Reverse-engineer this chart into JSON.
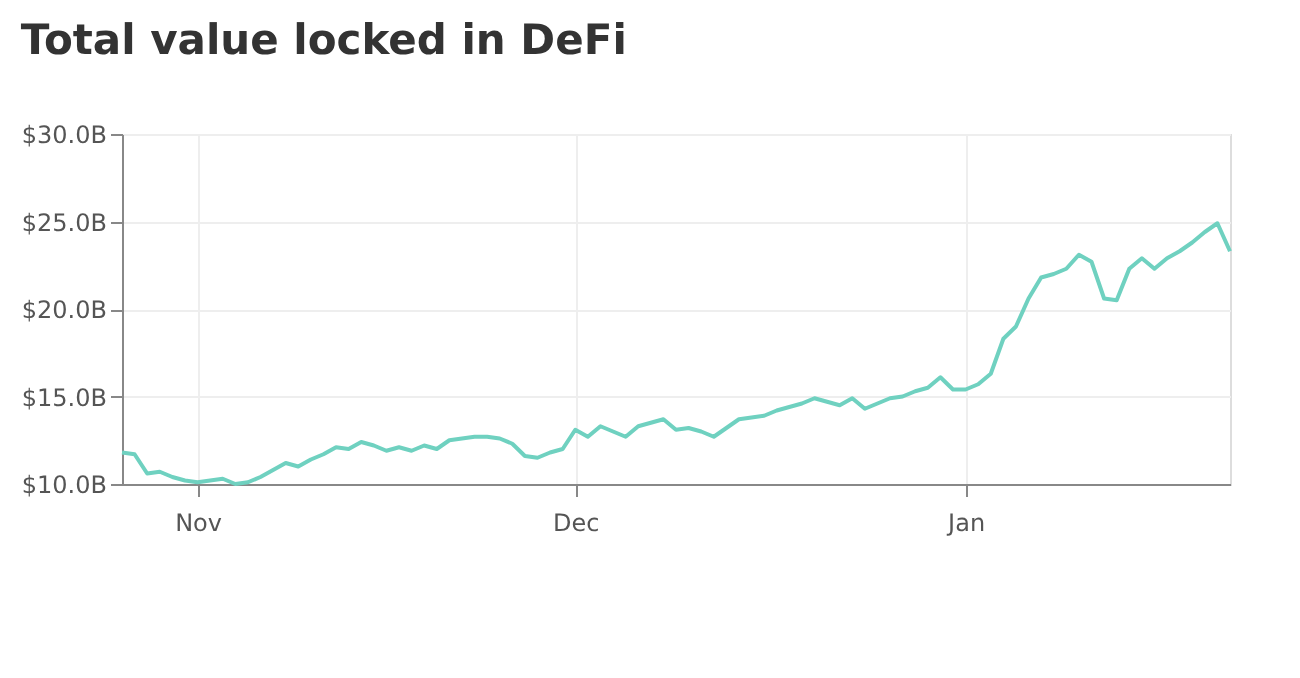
{
  "chart_data": {
    "type": "line",
    "title": "Total value locked in DeFi",
    "categories": [
      null,
      null,
      null,
      null,
      null,
      null,
      "Nov",
      null,
      null,
      null,
      null,
      null,
      null,
      null,
      null,
      null,
      null,
      null,
      null,
      null,
      null,
      null,
      null,
      null,
      null,
      null,
      null,
      null,
      null,
      null,
      null,
      null,
      null,
      null,
      null,
      null,
      "Dec",
      null,
      null,
      null,
      null,
      null,
      null,
      null,
      null,
      null,
      null,
      null,
      null,
      null,
      null,
      null,
      null,
      null,
      null,
      null,
      null,
      null,
      null,
      null,
      null,
      null,
      null,
      null,
      null,
      null,
      null,
      "Jan",
      null,
      null,
      null,
      null,
      null,
      null,
      null,
      null,
      null,
      null,
      null,
      null,
      null,
      null,
      null,
      null,
      null,
      null,
      null,
      null,
      null
    ],
    "series": [
      {
        "color": "#6fd1c0",
        "values": [
          11.8,
          11.7,
          10.6,
          10.7,
          10.4,
          10.2,
          10.1,
          10.2,
          10.3,
          10.0,
          10.1,
          10.4,
          10.8,
          11.2,
          11.0,
          11.4,
          11.7,
          12.1,
          12.0,
          12.4,
          12.2,
          11.9,
          12.1,
          11.9,
          12.2,
          12.0,
          12.5,
          12.6,
          12.7,
          12.7,
          12.6,
          12.3,
          11.6,
          11.5,
          11.8,
          12.0,
          13.1,
          12.7,
          13.3,
          13.0,
          12.7,
          13.3,
          13.5,
          13.7,
          13.1,
          13.2,
          13.0,
          12.7,
          13.2,
          13.7,
          13.8,
          13.9,
          14.2,
          14.4,
          14.6,
          14.9,
          14.7,
          14.5,
          14.9,
          14.3,
          14.6,
          14.9,
          15.0,
          15.3,
          15.5,
          16.1,
          15.4,
          15.4,
          15.7,
          16.3,
          18.3,
          19.0,
          20.6,
          21.8,
          22.0,
          22.3,
          23.1,
          22.7,
          20.6,
          20.5,
          22.3,
          22.9,
          22.3,
          22.9,
          23.3,
          23.8,
          24.4,
          24.9,
          23.3
        ]
      }
    ],
    "ylim": [
      10,
      30
    ],
    "yticks": [
      {
        "value": 10,
        "label": "$10.0B"
      },
      {
        "value": 15,
        "label": "$15.0B"
      },
      {
        "value": 20,
        "label": "$20.0B"
      },
      {
        "value": 25,
        "label": "$25.0B"
      },
      {
        "value": 30,
        "label": "$30.0B"
      }
    ],
    "grid": true,
    "marker": "none",
    "line_style": "solid"
  }
}
